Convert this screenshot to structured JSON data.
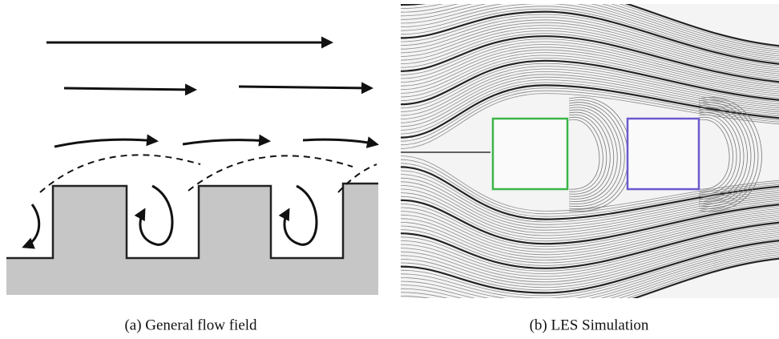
{
  "figure": {
    "panels": [
      {
        "caption": "(a) General flow field"
      },
      {
        "caption": "(b) LES Simulation"
      }
    ]
  }
}
